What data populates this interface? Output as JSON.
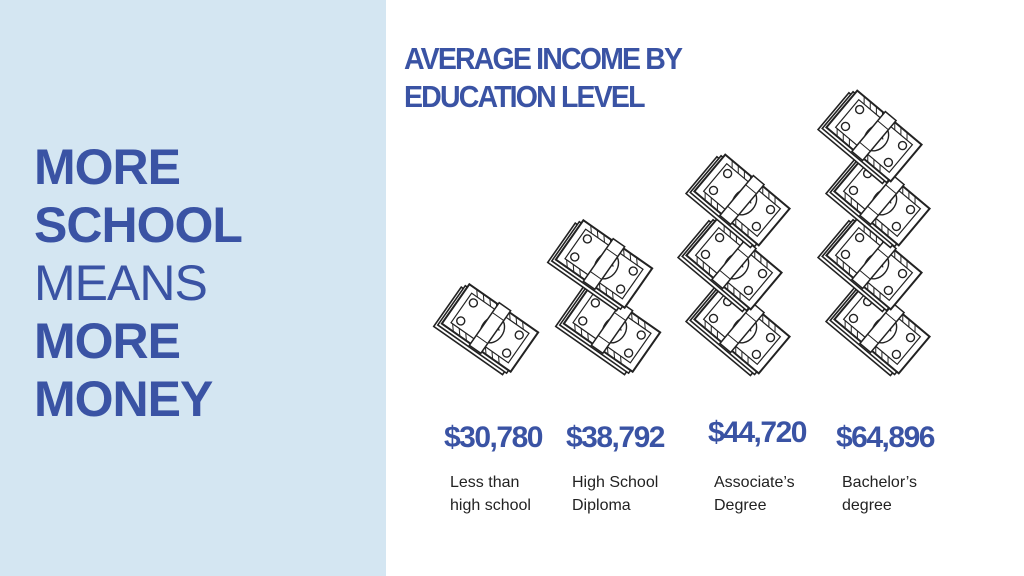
{
  "headline": {
    "line1": "MORE",
    "line2": "SCHOOL",
    "line3": "MEANS",
    "line4": "MORE",
    "line5": "MONEY"
  },
  "chart_data": {
    "type": "bar",
    "title_lines": [
      "AVERAGE INCOME BY",
      "EDUCATION LEVEL"
    ],
    "categories": [
      [
        "Less than",
        "high school"
      ],
      [
        "High School",
        "Diploma"
      ],
      [
        "Associate’s",
        "Degree"
      ],
      [
        "Bachelor’s",
        "degree"
      ]
    ],
    "values": [
      30780,
      38792,
      44720,
      64896
    ],
    "value_labels": [
      "$30,780",
      "$38,792",
      "$44,720",
      "$64,896"
    ],
    "stack_counts": [
      1,
      2,
      3,
      4
    ],
    "ylabel": "",
    "grid": false,
    "legend": "none"
  },
  "colors": {
    "accent": "#3a53a4",
    "panel_bg": "#d4e6f2",
    "text": "#222222"
  },
  "icons": {
    "money_stack": "banknote-stack-icon"
  }
}
